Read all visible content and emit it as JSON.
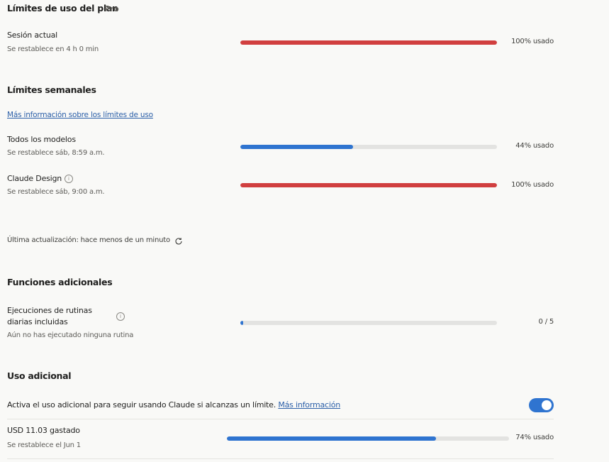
{
  "header": {
    "title": "Límites de uso del plan",
    "plan": "Pro"
  },
  "current_session": {
    "label": "Sesión actual",
    "reset": "Se restablece en 4 h 0 min",
    "percent": 100,
    "percent_label": "100% usado",
    "color": "#d13f3f"
  },
  "weekly": {
    "title": "Límites semanales",
    "link": "Más información sobre los límites de uso",
    "items": [
      {
        "label": "Todos los modelos",
        "reset": "Se restablece sáb, 8:59 a.m.",
        "percent": 44,
        "percent_label": "44% usado",
        "color": "#2f74d0"
      },
      {
        "label": "Claude Design",
        "reset": "Se restablece sáb, 9:00 a.m.",
        "percent": 100,
        "percent_label": "100% usado",
        "color": "#d13f3f"
      }
    ]
  },
  "last_updated": "Última actualización: hace menos de un minuto",
  "additional_functions": {
    "title": "Funciones adicionales",
    "items": [
      {
        "label": "Ejecuciones de rutinas diarias incluidas",
        "detail": "Aún no has ejecutado ninguna rutina",
        "used": 0,
        "limit": 5,
        "usage_label": "0 / 5",
        "color": "#2f74d0"
      }
    ]
  },
  "extra_usage": {
    "title": "Uso adicional",
    "text": "Activa el uso adicional para seguir usando Claude si alcanzas un límite.",
    "link": "Más información",
    "enabled": true,
    "spent": "USD 11.03 gastado",
    "reset": "Se restablece el Jun 1",
    "percent": 74,
    "percent_label": "74% usado",
    "color": "#2f74d0"
  }
}
